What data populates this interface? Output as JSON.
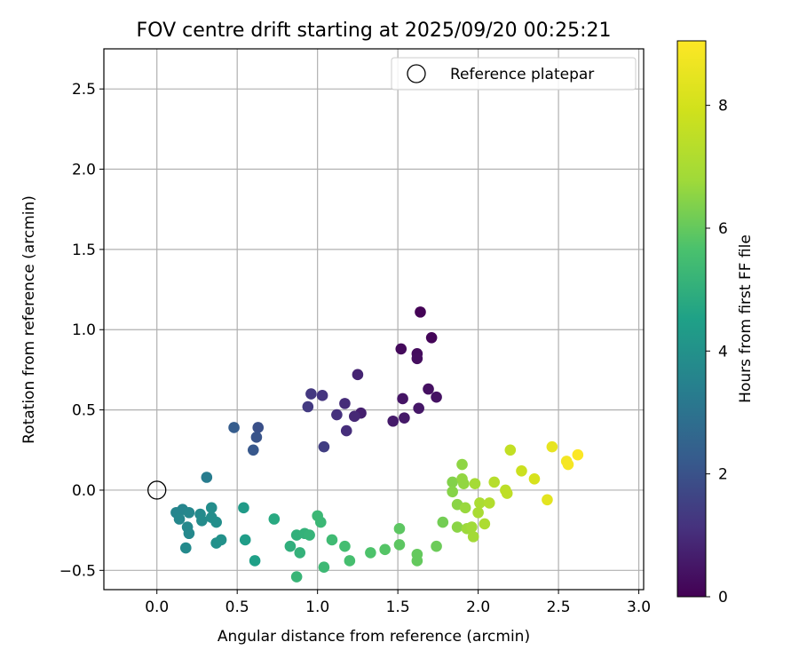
{
  "chart_data": {
    "type": "scatter",
    "title": "FOV centre drift starting at 2025/09/20 00:25:21",
    "xlabel": "Angular distance from reference (arcmin)",
    "ylabel": "Rotation from reference (arcmin)",
    "xlim": [
      -0.33,
      3.03
    ],
    "ylim": [
      -0.62,
      2.75
    ],
    "xticks": [
      0.0,
      0.5,
      1.0,
      1.5,
      2.0,
      2.5,
      3.0
    ],
    "xtick_labels": [
      "0.0",
      "0.5",
      "1.0",
      "1.5",
      "2.0",
      "2.5",
      "3.0"
    ],
    "yticks": [
      -0.5,
      0.0,
      0.5,
      1.0,
      1.5,
      2.0,
      2.5
    ],
    "ytick_labels": [
      "−0.5",
      "0.0",
      "0.5",
      "1.0",
      "1.5",
      "2.0",
      "2.5"
    ],
    "grid": true,
    "legend": {
      "position": "top-right",
      "entries": [
        "Reference platepar"
      ]
    },
    "reference_point": {
      "x": 0.0,
      "y": 0.0,
      "label": "Reference platepar"
    },
    "colorbar": {
      "label": "Hours from first FF file",
      "range": [
        0,
        9.05
      ],
      "ticks": [
        0,
        2,
        4,
        6,
        8
      ],
      "tick_labels": [
        "0",
        "2",
        "4",
        "6",
        "8"
      ],
      "colormap": "viridis"
    },
    "points": [
      {
        "x": 1.64,
        "y": 1.11,
        "c": 0.05
      },
      {
        "x": 1.71,
        "y": 0.95,
        "c": 0.1
      },
      {
        "x": 1.52,
        "y": 0.88,
        "c": 0.2
      },
      {
        "x": 1.62,
        "y": 0.85,
        "c": 0.25
      },
      {
        "x": 1.62,
        "y": 0.82,
        "c": 0.3
      },
      {
        "x": 1.69,
        "y": 0.63,
        "c": 0.35
      },
      {
        "x": 1.74,
        "y": 0.58,
        "c": 0.4
      },
      {
        "x": 1.53,
        "y": 0.57,
        "c": 0.45
      },
      {
        "x": 1.63,
        "y": 0.51,
        "c": 0.5
      },
      {
        "x": 1.54,
        "y": 0.45,
        "c": 0.55
      },
      {
        "x": 1.47,
        "y": 0.43,
        "c": 0.6
      },
      {
        "x": 1.27,
        "y": 0.48,
        "c": 0.7
      },
      {
        "x": 1.25,
        "y": 0.72,
        "c": 0.8
      },
      {
        "x": 1.23,
        "y": 0.46,
        "c": 0.9
      },
      {
        "x": 1.17,
        "y": 0.54,
        "c": 1.0
      },
      {
        "x": 1.18,
        "y": 0.37,
        "c": 1.05
      },
      {
        "x": 1.12,
        "y": 0.47,
        "c": 1.1
      },
      {
        "x": 1.03,
        "y": 0.59,
        "c": 1.2
      },
      {
        "x": 0.96,
        "y": 0.6,
        "c": 1.3
      },
      {
        "x": 0.94,
        "y": 0.52,
        "c": 1.35
      },
      {
        "x": 1.04,
        "y": 0.27,
        "c": 1.45
      },
      {
        "x": 0.63,
        "y": 0.39,
        "c": 1.95
      },
      {
        "x": 0.62,
        "y": 0.33,
        "c": 2.05
      },
      {
        "x": 0.6,
        "y": 0.25,
        "c": 2.15
      },
      {
        "x": 0.48,
        "y": 0.39,
        "c": 2.3
      },
      {
        "x": 0.31,
        "y": 0.08,
        "c": 3.3
      },
      {
        "x": 0.12,
        "y": -0.14,
        "c": 3.6
      },
      {
        "x": 0.16,
        "y": -0.12,
        "c": 3.6
      },
      {
        "x": 0.14,
        "y": -0.18,
        "c": 3.65
      },
      {
        "x": 0.2,
        "y": -0.14,
        "c": 3.65
      },
      {
        "x": 0.19,
        "y": -0.23,
        "c": 3.7
      },
      {
        "x": 0.2,
        "y": -0.27,
        "c": 3.7
      },
      {
        "x": 0.18,
        "y": -0.36,
        "c": 3.75
      },
      {
        "x": 0.27,
        "y": -0.15,
        "c": 3.75
      },
      {
        "x": 0.28,
        "y": -0.19,
        "c": 3.8
      },
      {
        "x": 0.34,
        "y": -0.11,
        "c": 3.85
      },
      {
        "x": 0.34,
        "y": -0.17,
        "c": 3.85
      },
      {
        "x": 0.37,
        "y": -0.2,
        "c": 3.9
      },
      {
        "x": 0.37,
        "y": -0.33,
        "c": 3.95
      },
      {
        "x": 0.4,
        "y": -0.31,
        "c": 4.0
      },
      {
        "x": 0.54,
        "y": -0.11,
        "c": 4.3
      },
      {
        "x": 0.55,
        "y": -0.31,
        "c": 4.4
      },
      {
        "x": 0.61,
        "y": -0.44,
        "c": 4.5
      },
      {
        "x": 0.73,
        "y": -0.18,
        "c": 4.8
      },
      {
        "x": 0.83,
        "y": -0.35,
        "c": 5.0
      },
      {
        "x": 0.87,
        "y": -0.28,
        "c": 5.05
      },
      {
        "x": 0.89,
        "y": -0.39,
        "c": 5.1
      },
      {
        "x": 0.92,
        "y": -0.27,
        "c": 5.1
      },
      {
        "x": 0.95,
        "y": -0.28,
        "c": 5.15
      },
      {
        "x": 0.87,
        "y": -0.54,
        "c": 5.2
      },
      {
        "x": 1.0,
        "y": -0.16,
        "c": 5.3
      },
      {
        "x": 1.02,
        "y": -0.2,
        "c": 5.3
      },
      {
        "x": 1.04,
        "y": -0.48,
        "c": 5.35
      },
      {
        "x": 1.09,
        "y": -0.31,
        "c": 5.4
      },
      {
        "x": 1.17,
        "y": -0.35,
        "c": 5.5
      },
      {
        "x": 1.2,
        "y": -0.44,
        "c": 5.55
      },
      {
        "x": 1.33,
        "y": -0.39,
        "c": 5.7
      },
      {
        "x": 1.42,
        "y": -0.37,
        "c": 5.8
      },
      {
        "x": 1.51,
        "y": -0.24,
        "c": 5.9
      },
      {
        "x": 1.51,
        "y": -0.34,
        "c": 5.9
      },
      {
        "x": 1.62,
        "y": -0.4,
        "c": 6.0
      },
      {
        "x": 1.62,
        "y": -0.44,
        "c": 6.0
      },
      {
        "x": 1.74,
        "y": -0.35,
        "c": 6.1
      },
      {
        "x": 1.78,
        "y": -0.2,
        "c": 6.2
      },
      {
        "x": 1.84,
        "y": 0.05,
        "c": 6.4
      },
      {
        "x": 1.84,
        "y": -0.01,
        "c": 6.45
      },
      {
        "x": 1.87,
        "y": -0.09,
        "c": 6.5
      },
      {
        "x": 1.87,
        "y": -0.23,
        "c": 6.5
      },
      {
        "x": 1.9,
        "y": 0.16,
        "c": 6.55
      },
      {
        "x": 1.9,
        "y": 0.07,
        "c": 6.6
      },
      {
        "x": 1.91,
        "y": 0.04,
        "c": 6.6
      },
      {
        "x": 1.92,
        "y": -0.11,
        "c": 6.7
      },
      {
        "x": 1.93,
        "y": -0.24,
        "c": 6.75
      },
      {
        "x": 1.96,
        "y": -0.23,
        "c": 6.8
      },
      {
        "x": 1.97,
        "y": -0.29,
        "c": 6.85
      },
      {
        "x": 1.98,
        "y": 0.04,
        "c": 6.9
      },
      {
        "x": 2.0,
        "y": -0.14,
        "c": 7.0
      },
      {
        "x": 2.01,
        "y": -0.08,
        "c": 7.05
      },
      {
        "x": 2.04,
        "y": -0.21,
        "c": 7.1
      },
      {
        "x": 2.07,
        "y": -0.08,
        "c": 7.2
      },
      {
        "x": 2.1,
        "y": 0.05,
        "c": 7.3
      },
      {
        "x": 2.17,
        "y": 0.0,
        "c": 7.45
      },
      {
        "x": 2.18,
        "y": -0.02,
        "c": 7.5
      },
      {
        "x": 2.2,
        "y": 0.25,
        "c": 7.6
      },
      {
        "x": 2.27,
        "y": 0.12,
        "c": 7.8
      },
      {
        "x": 2.35,
        "y": 0.07,
        "c": 8.1
      },
      {
        "x": 2.43,
        "y": -0.06,
        "c": 8.4
      },
      {
        "x": 2.46,
        "y": 0.27,
        "c": 8.5
      },
      {
        "x": 2.55,
        "y": 0.18,
        "c": 8.8
      },
      {
        "x": 2.56,
        "y": 0.16,
        "c": 8.85
      },
      {
        "x": 2.62,
        "y": 0.22,
        "c": 9.0
      }
    ]
  }
}
